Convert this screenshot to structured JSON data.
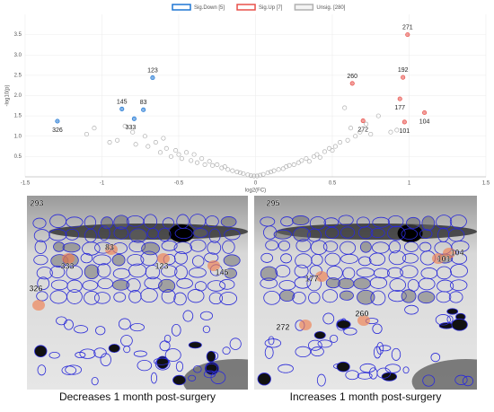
{
  "chart_data": {
    "type": "scatter",
    "x_label": "log2(FC)",
    "y_label": "-log10(p)",
    "xlim": [
      -1.5,
      1.5
    ],
    "xticks": [
      -1.5,
      -1,
      -0.5,
      0,
      0.5,
      1,
      1.5
    ],
    "ylim": [
      0,
      4
    ],
    "yticks": [
      0.5,
      {
        "value": 1,
        "label": "1.0"
      },
      1.5,
      {
        "value": 2,
        "label": "2.0"
      },
      2.5,
      {
        "value": 3,
        "label": "3.0"
      },
      3.5
    ],
    "grid": true,
    "series": [
      {
        "name": "Sig.Down [5]",
        "color": "#1f77d4",
        "labels": [
          "326",
          "145",
          "333",
          "83",
          "123"
        ],
        "x": [
          -1.29,
          -0.87,
          -0.79,
          -0.73,
          -0.67
        ],
        "values": [
          1.37,
          1.67,
          1.43,
          1.65,
          2.44
        ]
      },
      {
        "name": "Sig.Up [7]",
        "color": "#e8504a",
        "labels": [
          "271",
          "260",
          "192",
          "177",
          "104",
          "272",
          "101"
        ],
        "x": [
          0.99,
          0.63,
          0.96,
          0.94,
          1.1,
          0.7,
          0.97
        ],
        "values": [
          3.5,
          2.3,
          2.45,
          1.92,
          1.58,
          1.38,
          1.35
        ]
      },
      {
        "name": "Unsig. [280]",
        "color": "#b0b0b0",
        "x": [
          -1.1,
          -1.05,
          -0.95,
          -0.9,
          -0.85,
          -0.8,
          -0.78,
          -0.72,
          -0.7,
          -0.65,
          -0.62,
          -0.6,
          -0.58,
          -0.55,
          -0.52,
          -0.5,
          -0.48,
          -0.45,
          -0.42,
          -0.4,
          -0.38,
          -0.35,
          -0.33,
          -0.3,
          -0.28,
          -0.25,
          -0.22,
          -0.2,
          -0.18,
          -0.15,
          -0.12,
          -0.1,
          -0.08,
          -0.05,
          -0.03,
          -0.01,
          0.01,
          0.03,
          0.05,
          0.08,
          0.1,
          0.12,
          0.15,
          0.18,
          0.2,
          0.22,
          0.25,
          0.28,
          0.3,
          0.33,
          0.35,
          0.38,
          0.4,
          0.42,
          0.45,
          0.48,
          0.5,
          0.52,
          0.55,
          0.58,
          0.6,
          0.62,
          0.65,
          0.68,
          0.72,
          0.75,
          0.8,
          0.88,
          0.92
        ],
        "values": [
          1.05,
          1.2,
          0.85,
          0.9,
          1.25,
          1.1,
          0.8,
          1.0,
          0.75,
          0.85,
          0.6,
          0.95,
          0.7,
          0.5,
          0.65,
          0.55,
          0.45,
          0.6,
          0.4,
          0.55,
          0.35,
          0.45,
          0.3,
          0.38,
          0.28,
          0.3,
          0.22,
          0.25,
          0.18,
          0.15,
          0.12,
          0.1,
          0.08,
          0.05,
          0.03,
          0.02,
          0.02,
          0.04,
          0.06,
          0.1,
          0.12,
          0.15,
          0.18,
          0.2,
          0.25,
          0.28,
          0.3,
          0.35,
          0.4,
          0.45,
          0.38,
          0.5,
          0.55,
          0.48,
          0.62,
          0.7,
          0.65,
          0.75,
          0.85,
          1.7,
          0.9,
          1.2,
          1.0,
          1.1,
          1.3,
          1.05,
          1.5,
          1.1,
          1.15
        ]
      }
    ]
  },
  "gels": [
    {
      "caption": "Decreases 1 month post-surgery",
      "spot_labels": [
        "293",
        "83",
        "333",
        "123",
        "145",
        "326"
      ]
    },
    {
      "caption": "Increases 1 month post-surgery",
      "spot_labels": [
        "295",
        "104",
        "101",
        "177",
        "260",
        "272"
      ]
    }
  ]
}
